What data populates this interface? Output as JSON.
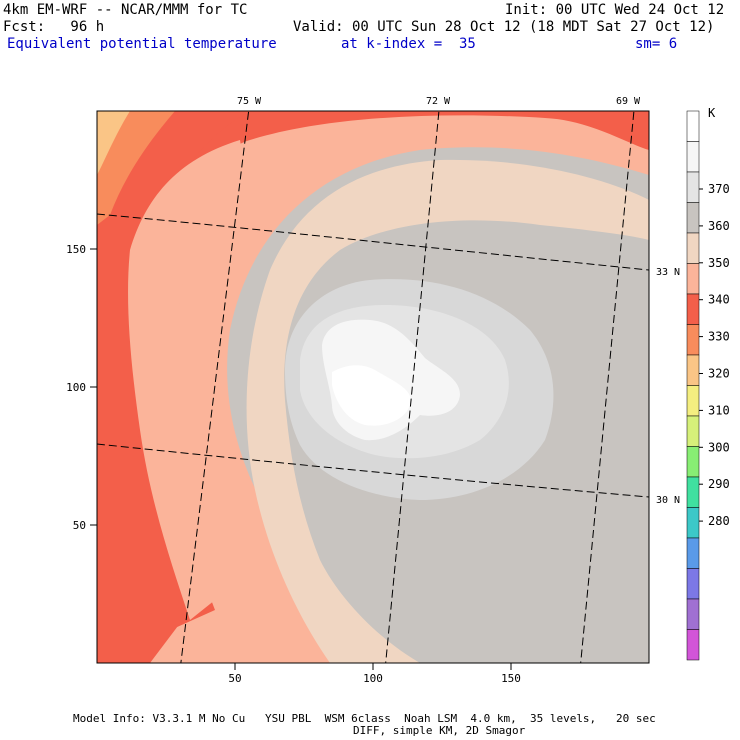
{
  "header": {
    "model": "4km EM-WRF -- NCAR/MMM for TC",
    "forecast": "Fcst:   96 h",
    "init": "Init: 00 UTC Wed 24 Oct 12",
    "valid": "Valid: 00 UTC Sun 28 Oct 12 (18 MDT Sat 27 Oct 12)",
    "field": "Equivalent potential temperature",
    "level": "at k-index =  35",
    "smoothing": "sm= 6"
  },
  "axes": {
    "x_ticks": [
      "50",
      "100",
      "150"
    ],
    "y_ticks": [
      "150",
      "100",
      "50"
    ]
  },
  "geo_labels": {
    "lon": [
      "75 W",
      "72 W",
      "69 W"
    ],
    "lat": [
      "33 N",
      "30 N"
    ]
  },
  "colorbar": {
    "unit": "K",
    "levels": [
      "370",
      "360",
      "350",
      "340",
      "330",
      "320",
      "310",
      "300",
      "290",
      "280"
    ],
    "colors": [
      "#ffffff",
      "#f6f6f6",
      "#e4e4e4",
      "#c8c4c0",
      "#f0d6c2",
      "#fbb49a",
      "#f35f4a",
      "#f88c5c",
      "#fac586",
      "#f4ee80",
      "#d6f07a",
      "#88ee74",
      "#40e0a0",
      "#3cc8c8",
      "#5a9ae8",
      "#7c78e6",
      "#a070d2",
      "#d255d8"
    ]
  },
  "colors": {
    "background_field": "#c8c4c0",
    "eye": "#ffffff",
    "inner_core": "#e4e4e4",
    "core": "#d8d8d8",
    "warm_band": "#f0d6c2",
    "rainband": "#fbb49a",
    "outer_band": "#f35f4a"
  },
  "footer": {
    "line1": "Model Info: V3.3.1 M No Cu   YSU PBL  WSM 6class  Noah LSM  4.0 km,  35 levels,   20 sec",
    "line2": "DIFF, simple KM, 2D Smagor"
  }
}
